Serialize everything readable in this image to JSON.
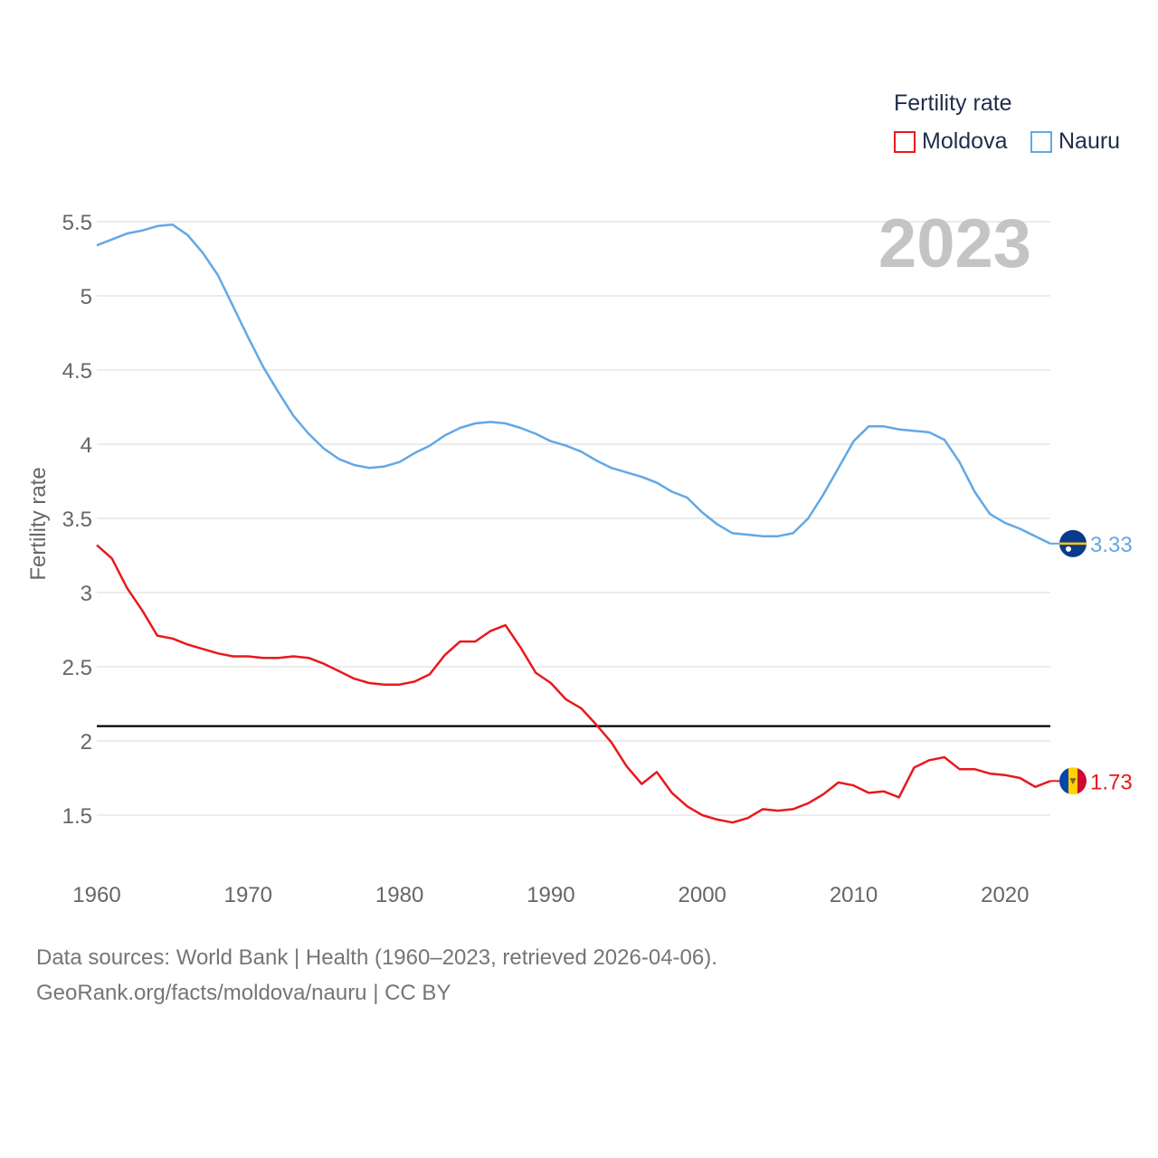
{
  "legend": {
    "title": "Fertility rate",
    "items": [
      {
        "label": "Moldova",
        "color": "#e8191d"
      },
      {
        "label": "Nauru",
        "color": "#62a8e6"
      }
    ]
  },
  "year_label": "2023",
  "source": {
    "line1": "Data sources: World Bank | Health (1960–2023, retrieved 2026-04-06).",
    "line2": "GeoRank.org/facts/moldova/nauru | CC BY"
  },
  "chart_data": {
    "type": "line",
    "title": "Fertility rate",
    "xlabel": "",
    "ylabel": "Fertility rate",
    "xlim": [
      1960,
      2023
    ],
    "ylim": [
      1.5,
      5.5
    ],
    "yticks": [
      1.5,
      2,
      2.5,
      3,
      3.5,
      4,
      4.5,
      5,
      5.5
    ],
    "ytick_labels": [
      "1.5",
      "2",
      "2.5",
      "3",
      "3.5",
      "4",
      "4.5",
      "5",
      "5.5"
    ],
    "xticks": [
      1960,
      1970,
      1980,
      1990,
      2000,
      2010,
      2020
    ],
    "xtick_labels": [
      "1960",
      "1970",
      "1980",
      "1990",
      "2000",
      "2010",
      "2020"
    ],
    "reference_line": {
      "y": 2.1,
      "color": "#000000"
    },
    "x": [
      1960,
      1961,
      1962,
      1963,
      1964,
      1965,
      1966,
      1967,
      1968,
      1969,
      1970,
      1971,
      1972,
      1973,
      1974,
      1975,
      1976,
      1977,
      1978,
      1979,
      1980,
      1981,
      1982,
      1983,
      1984,
      1985,
      1986,
      1987,
      1988,
      1989,
      1990,
      1991,
      1992,
      1993,
      1994,
      1995,
      1996,
      1997,
      1998,
      1999,
      2000,
      2001,
      2002,
      2003,
      2004,
      2005,
      2006,
      2007,
      2008,
      2009,
      2010,
      2011,
      2012,
      2013,
      2014,
      2015,
      2016,
      2017,
      2018,
      2019,
      2020,
      2021,
      2022,
      2023
    ],
    "series": [
      {
        "name": "Moldova",
        "color": "#e8191d",
        "end_label": "1.73",
        "values": [
          3.32,
          3.23,
          3.03,
          2.88,
          2.71,
          2.69,
          2.65,
          2.62,
          2.59,
          2.57,
          2.57,
          2.56,
          2.56,
          2.57,
          2.56,
          2.52,
          2.47,
          2.42,
          2.39,
          2.38,
          2.38,
          2.4,
          2.45,
          2.58,
          2.67,
          2.67,
          2.74,
          2.78,
          2.63,
          2.46,
          2.39,
          2.28,
          2.22,
          2.11,
          1.99,
          1.83,
          1.71,
          1.79,
          1.65,
          1.56,
          1.5,
          1.47,
          1.45,
          1.48,
          1.54,
          1.53,
          1.54,
          1.58,
          1.64,
          1.72,
          1.7,
          1.65,
          1.66,
          1.62,
          1.82,
          1.87,
          1.89,
          1.81,
          1.81,
          1.78,
          1.77,
          1.75,
          1.69,
          1.73
        ]
      },
      {
        "name": "Nauru",
        "color": "#62a8e6",
        "end_label": "3.33",
        "values": [
          5.34,
          5.38,
          5.42,
          5.44,
          5.47,
          5.48,
          5.41,
          5.29,
          5.14,
          4.93,
          4.72,
          4.52,
          4.35,
          4.19,
          4.07,
          3.97,
          3.9,
          3.86,
          3.84,
          3.85,
          3.88,
          3.94,
          3.99,
          4.06,
          4.11,
          4.14,
          4.15,
          4.14,
          4.11,
          4.07,
          4.02,
          3.99,
          3.95,
          3.89,
          3.84,
          3.81,
          3.78,
          3.74,
          3.68,
          3.64,
          3.54,
          3.46,
          3.4,
          3.39,
          3.38,
          3.38,
          3.4,
          3.5,
          3.66,
          3.84,
          4.02,
          4.12,
          4.12,
          4.1,
          4.09,
          4.08,
          4.03,
          3.88,
          3.68,
          3.53,
          3.47,
          3.43,
          3.38,
          3.33
        ]
      }
    ]
  }
}
